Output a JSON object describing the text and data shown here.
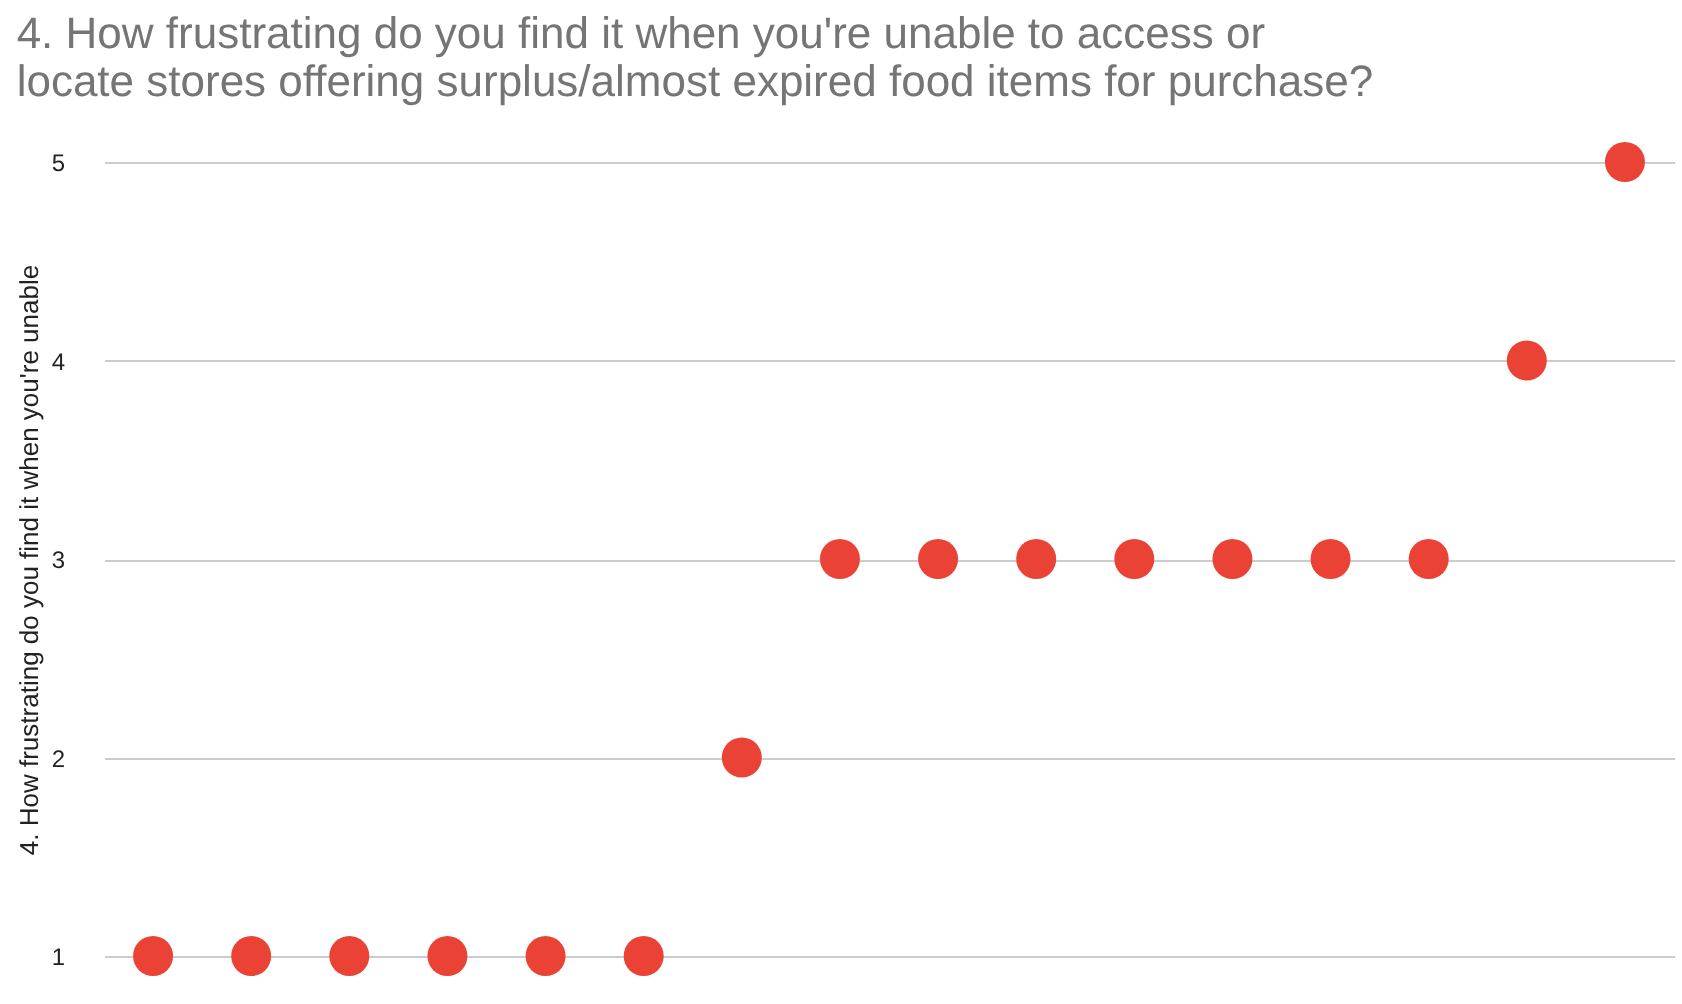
{
  "chart_data": {
    "type": "scatter",
    "title": [
      "4. How frustrating do you find it when you're unable to access or",
      "locate stores offering surplus/almost expired food items for purchase?"
    ],
    "ylabel": "4. How frustrating do you find it when you're unable",
    "categories": [
      null,
      null,
      null,
      null,
      null,
      null,
      null,
      null,
      null,
      null,
      null,
      null,
      null,
      null,
      null,
      null
    ],
    "series": [
      {
        "color": "#ea4335",
        "values": [
          1,
          1,
          1,
          1,
          1,
          1,
          2,
          3,
          3,
          3,
          3,
          3,
          3,
          3,
          4,
          5
        ]
      }
    ],
    "ylim": [
      1,
      5
    ],
    "yticks": [
      1,
      2,
      3,
      4,
      5
    ],
    "grid": "y",
    "marker": "circle",
    "tick_labels": "y",
    "legend": false
  }
}
